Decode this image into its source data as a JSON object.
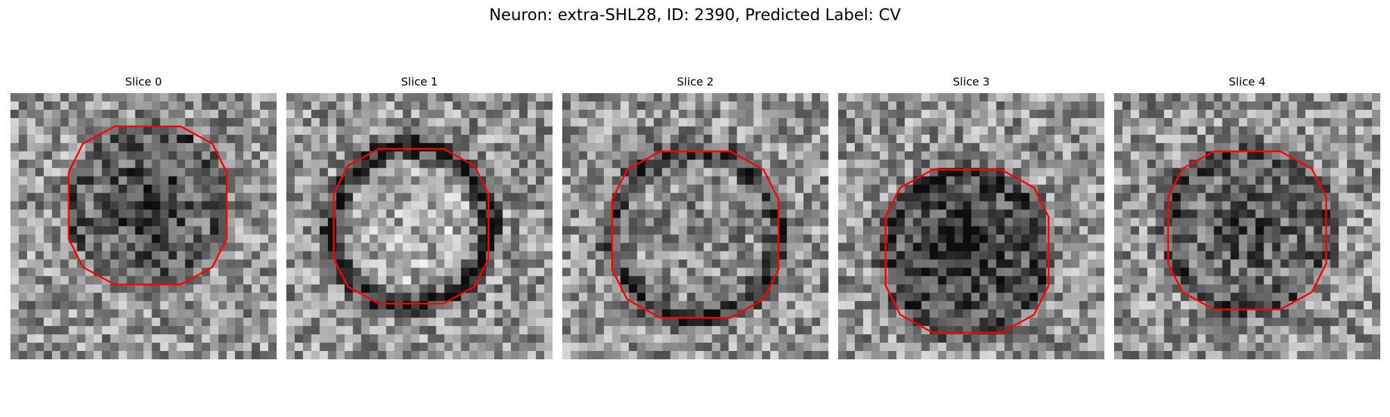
{
  "figure": {
    "title": "Neuron: extra-SHL28, ID: 2390, Predicted Label: CV",
    "contour_color": "#ff0000"
  },
  "panels": [
    {
      "title": "Slice 0",
      "seed": 11
    },
    {
      "title": "Slice 1",
      "seed": 23
    },
    {
      "title": "Slice 2",
      "seed": 37
    },
    {
      "title": "Slice 3",
      "seed": 51
    },
    {
      "title": "Slice 4",
      "seed": 67
    }
  ]
}
